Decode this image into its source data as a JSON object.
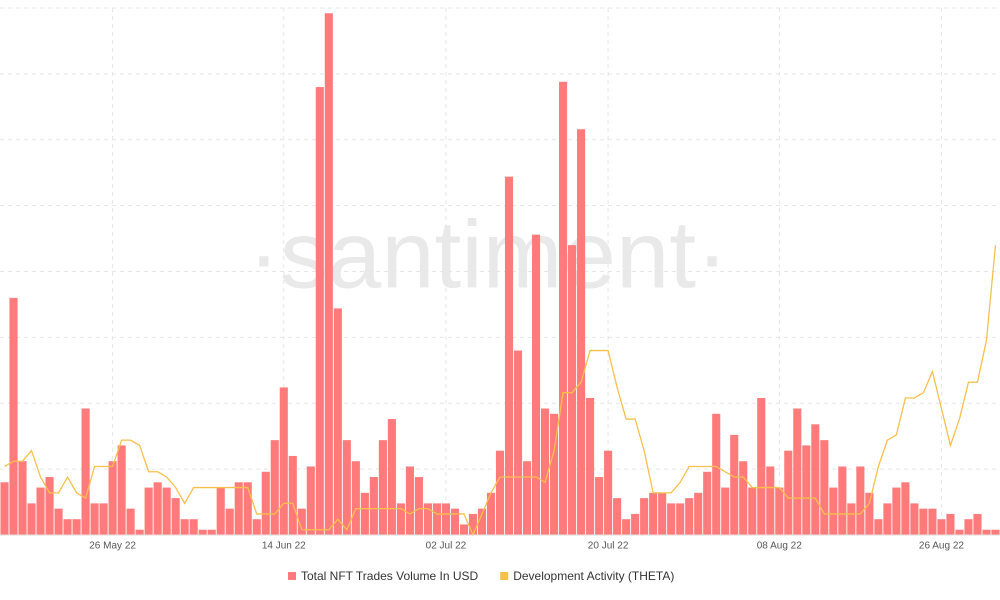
{
  "chart_data": {
    "type": "bar-line",
    "watermark": "·santiment·",
    "categories": [
      null,
      null,
      null,
      null,
      null,
      null,
      null,
      null,
      null,
      null,
      null,
      null,
      "26 May 22",
      null,
      null,
      null,
      null,
      null,
      null,
      null,
      null,
      null,
      null,
      null,
      null,
      null,
      null,
      null,
      null,
      null,
      null,
      "14 Jun 22",
      null,
      null,
      null,
      null,
      null,
      null,
      null,
      null,
      null,
      null,
      null,
      null,
      null,
      null,
      null,
      null,
      null,
      "02 Jul 22",
      null,
      null,
      null,
      null,
      null,
      null,
      null,
      null,
      null,
      null,
      null,
      null,
      null,
      null,
      null,
      null,
      null,
      "20 Jul 22",
      null,
      null,
      null,
      null,
      null,
      null,
      null,
      null,
      null,
      null,
      null,
      null,
      null,
      null,
      null,
      null,
      null,
      null,
      "08 Aug 22",
      null,
      null,
      null,
      null,
      null,
      null,
      null,
      null,
      null,
      null,
      null,
      null,
      null,
      null,
      null,
      null,
      null,
      "26 Aug 22",
      null,
      null,
      null,
      null,
      null,
      null
    ],
    "ylim": [
      0,
      100
    ],
    "grid": true,
    "series": [
      {
        "name": "Total NFT Trades Volume In USD",
        "color": "#ff7b7b",
        "kind": "bar",
        "values": [
          10,
          45,
          14,
          6,
          9,
          11,
          5,
          3,
          3,
          24,
          6,
          6,
          14,
          17,
          5,
          1,
          9,
          10,
          9,
          7,
          3,
          3,
          1,
          1,
          9,
          5,
          10,
          10,
          3,
          12,
          18,
          28,
          15,
          5,
          13,
          85,
          99,
          43,
          18,
          14,
          8,
          11,
          18,
          22,
          6,
          13,
          11,
          6,
          6,
          6,
          5,
          2,
          4,
          5,
          8,
          16,
          68,
          35,
          14,
          57,
          24,
          23,
          86,
          55,
          77,
          26,
          11,
          16,
          7,
          3,
          4,
          7,
          8,
          8,
          6,
          6,
          7,
          8,
          12,
          23,
          9,
          19,
          14,
          9,
          26,
          13,
          9,
          16,
          24,
          17,
          21,
          18,
          9,
          13,
          6,
          13,
          8,
          3,
          6,
          9,
          10,
          6,
          5,
          5,
          3,
          4,
          1,
          3,
          4,
          1,
          1
        ]
      },
      {
        "name": "Development Activity (THETA)",
        "color": "#f7c04a",
        "kind": "line",
        "values": [
          13,
          14,
          14,
          16,
          11,
          8,
          8,
          11,
          8,
          7,
          13,
          13,
          13,
          18,
          18,
          17,
          12,
          12,
          11,
          9,
          6,
          9,
          9,
          9,
          9,
          9,
          9,
          9,
          4,
          4,
          4,
          6,
          6,
          1,
          1,
          1,
          1,
          3,
          1,
          5,
          5,
          5,
          5,
          5,
          5,
          4,
          5,
          5,
          4,
          4,
          4,
          4,
          0,
          4,
          8,
          11,
          11,
          11,
          11,
          11,
          10,
          16,
          27,
          27,
          29,
          35,
          35,
          35,
          28,
          22,
          22,
          16,
          8,
          8,
          8,
          10,
          13,
          13,
          13,
          13,
          12,
          11,
          11,
          9,
          9,
          9,
          9,
          7,
          7,
          7,
          7,
          4,
          4,
          4,
          4,
          4,
          6,
          13,
          18,
          19,
          26,
          26,
          27,
          31,
          24,
          17,
          22,
          29,
          29,
          37,
          55
        ]
      }
    ]
  }
}
